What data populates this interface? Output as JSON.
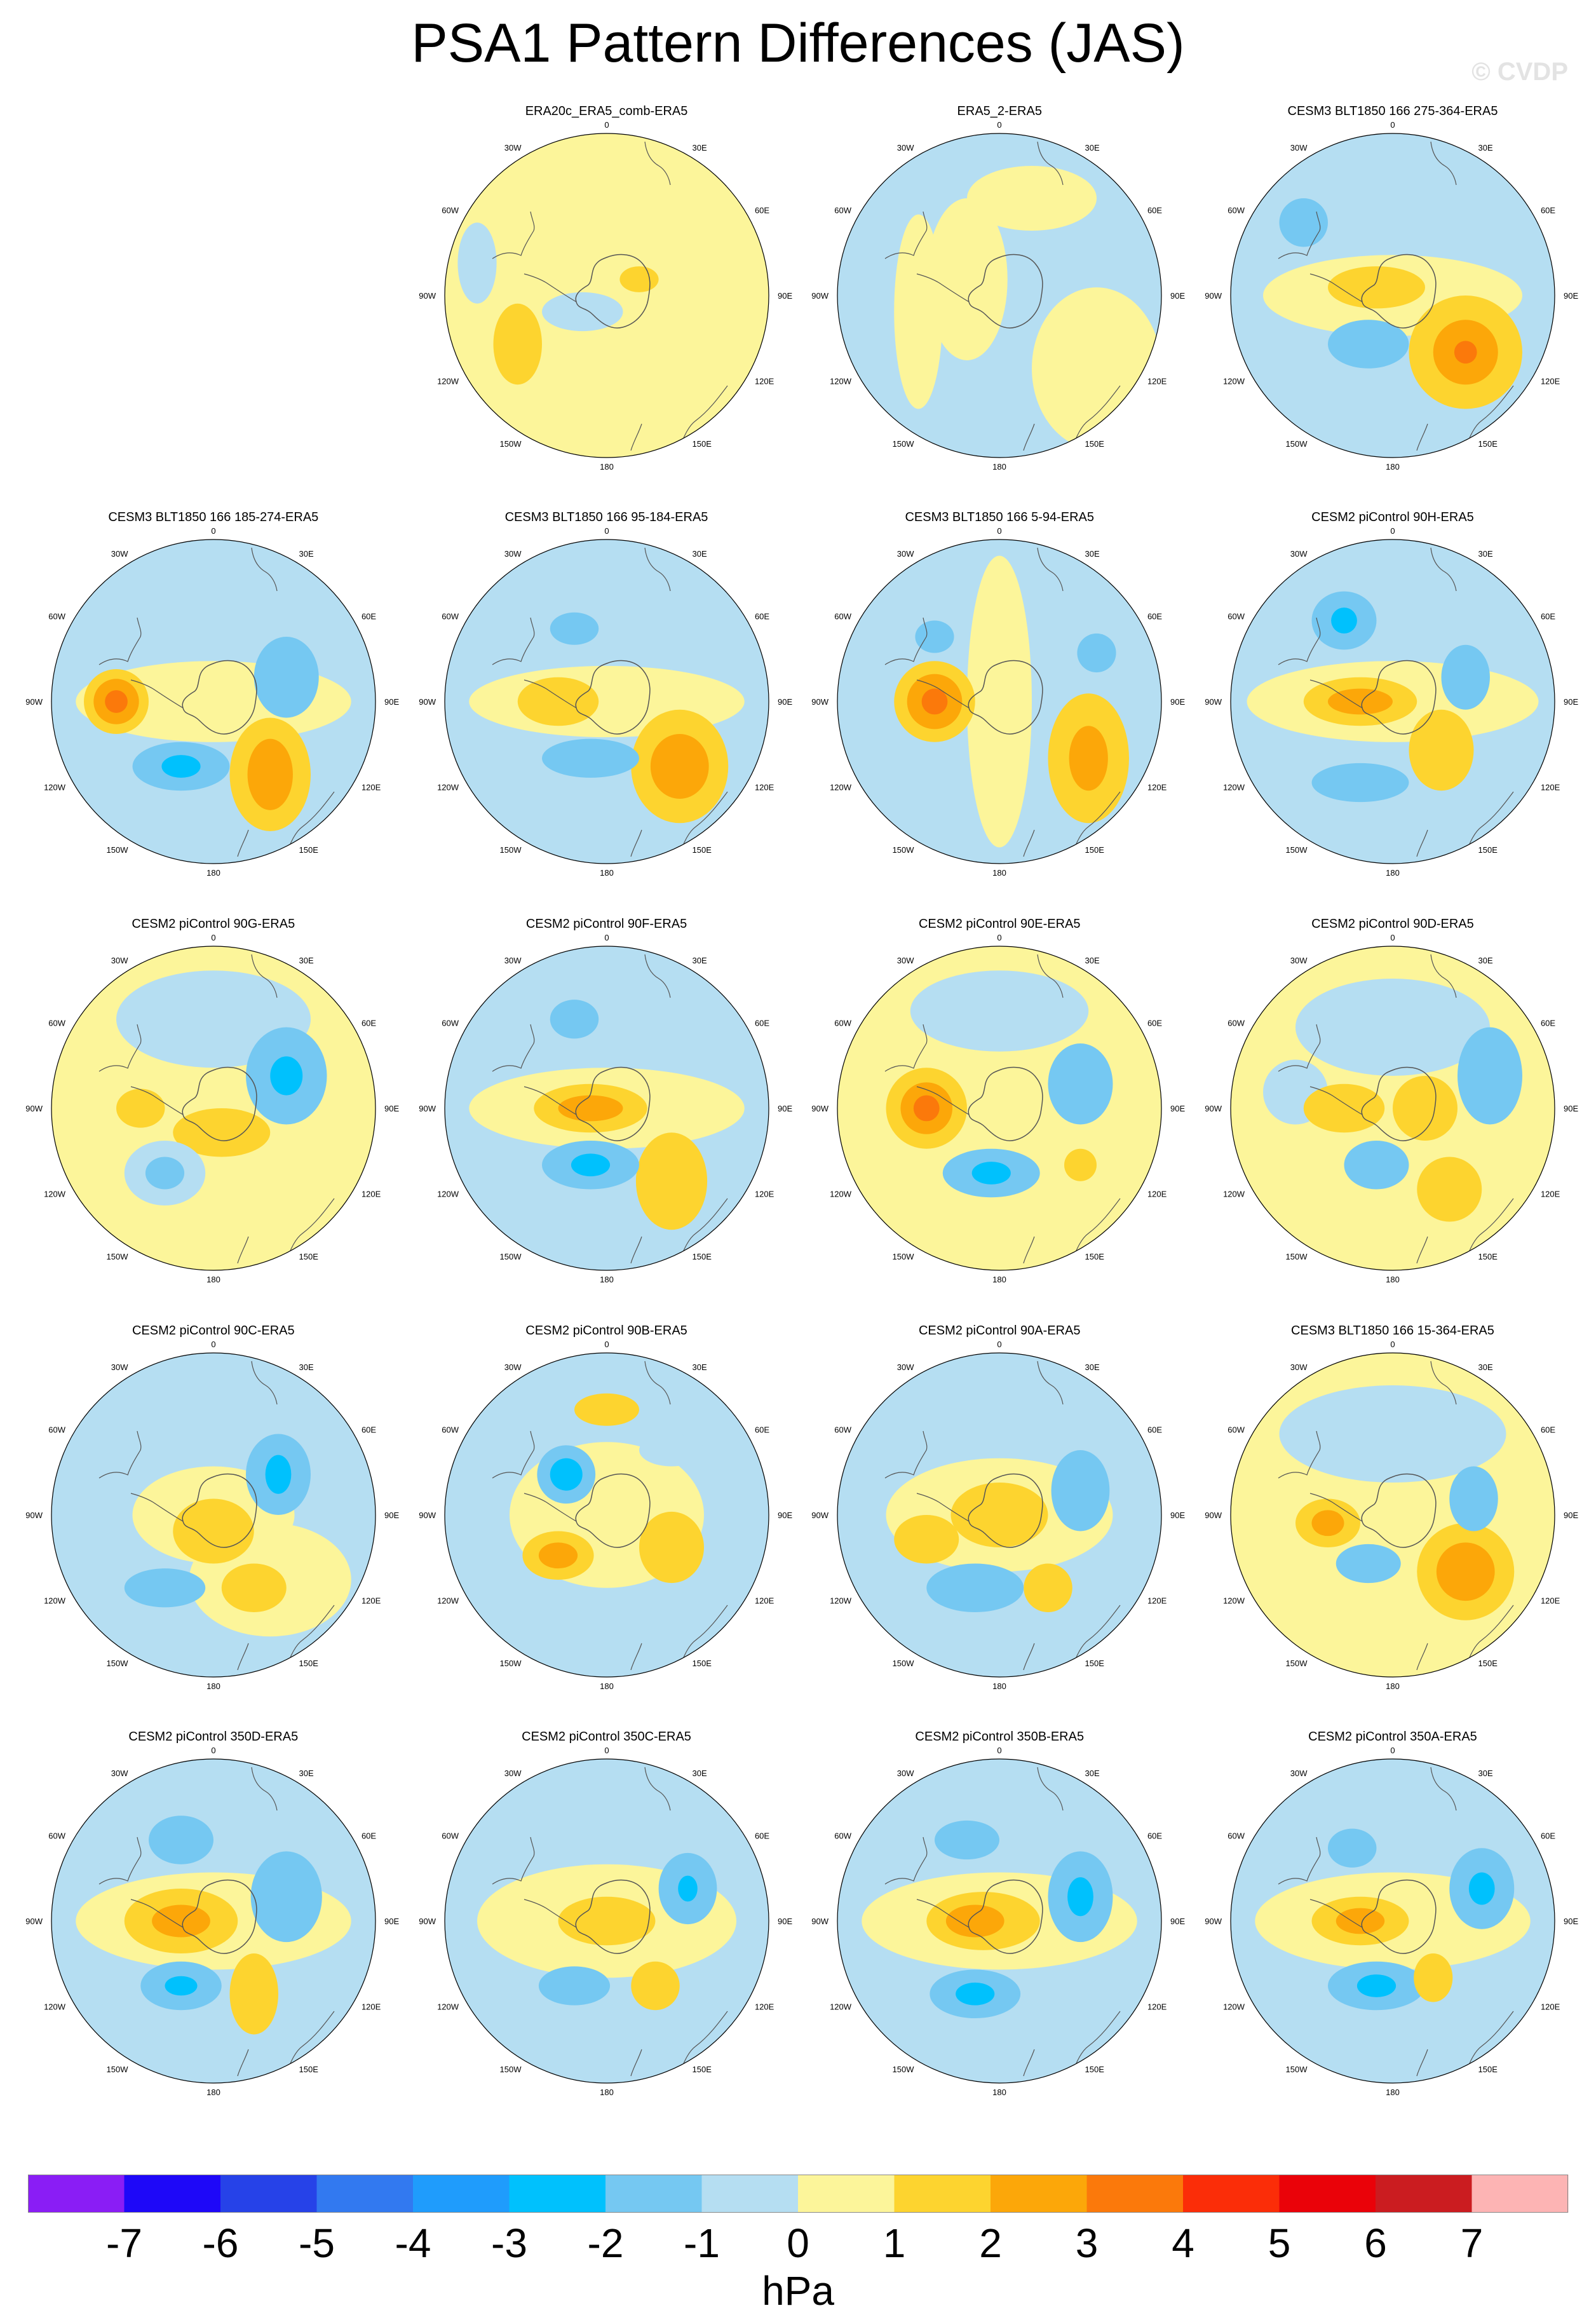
{
  "title": "PSA1 Pattern Differences (JAS)",
  "watermark": "© CVDP",
  "units": "hPa",
  "colorbar": {
    "tick_labels": [
      "-7",
      "-6",
      "-5",
      "-4",
      "-3",
      "-2",
      "-1",
      "0",
      "1",
      "2",
      "3",
      "4",
      "5",
      "6",
      "7"
    ],
    "colors": [
      "#8a1df5",
      "#1e08f8",
      "#2642e8",
      "#3279f0",
      "#1f9cfc",
      "#00c1fd",
      "#75c8f2",
      "#b5def2",
      "#fcf59a",
      "#fdd42f",
      "#fca709",
      "#fb790b",
      "#fb2d08",
      "#ea0209",
      "#cb1c20",
      "#fdb4b4"
    ]
  },
  "map_labels": {
    "lon_top": "0",
    "lon_30w": "30W",
    "lon_30e": "30E",
    "lon_60w": "60W",
    "lon_60e": "60E",
    "lon_90w": "90W",
    "lon_90e": "90E",
    "lon_120w": "120W",
    "lon_120e": "120E",
    "lon_150w": "150W",
    "lon_150e": "150E",
    "lon_bottom": "180"
  },
  "panels": [
    {
      "title": "ERA20c_ERA5_comb-ERA5",
      "row": 0,
      "col": 1
    },
    {
      "title": "ERA5_2-ERA5",
      "row": 0,
      "col": 2
    },
    {
      "title": "CESM3 BLT1850 166 275-364-ERA5",
      "row": 0,
      "col": 3
    },
    {
      "title": "CESM3 BLT1850 166 185-274-ERA5",
      "row": 1,
      "col": 0
    },
    {
      "title": "CESM3 BLT1850 166 95-184-ERA5",
      "row": 1,
      "col": 1
    },
    {
      "title": "CESM3 BLT1850 166 5-94-ERA5",
      "row": 1,
      "col": 2
    },
    {
      "title": "CESM2 piControl 90H-ERA5",
      "row": 1,
      "col": 3
    },
    {
      "title": "CESM2 piControl 90G-ERA5",
      "row": 2,
      "col": 0
    },
    {
      "title": "CESM2 piControl 90F-ERA5",
      "row": 2,
      "col": 1
    },
    {
      "title": "CESM2 piControl 90E-ERA5",
      "row": 2,
      "col": 2
    },
    {
      "title": "CESM2 piControl 90D-ERA5",
      "row": 2,
      "col": 3
    },
    {
      "title": "CESM2 piControl 90C-ERA5",
      "row": 3,
      "col": 0
    },
    {
      "title": "CESM2 piControl 90B-ERA5",
      "row": 3,
      "col": 1
    },
    {
      "title": "CESM2 piControl 90A-ERA5",
      "row": 3,
      "col": 2
    },
    {
      "title": "CESM3 BLT1850 166 15-364-ERA5",
      "row": 3,
      "col": 3
    },
    {
      "title": "CESM2 piControl 350D-ERA5",
      "row": 4,
      "col": 0
    },
    {
      "title": "CESM2 piControl 350C-ERA5",
      "row": 4,
      "col": 1
    },
    {
      "title": "CESM2 piControl 350B-ERA5",
      "row": 4,
      "col": 2
    },
    {
      "title": "CESM2 piControl 350A-ERA5",
      "row": 4,
      "col": 3
    }
  ]
}
